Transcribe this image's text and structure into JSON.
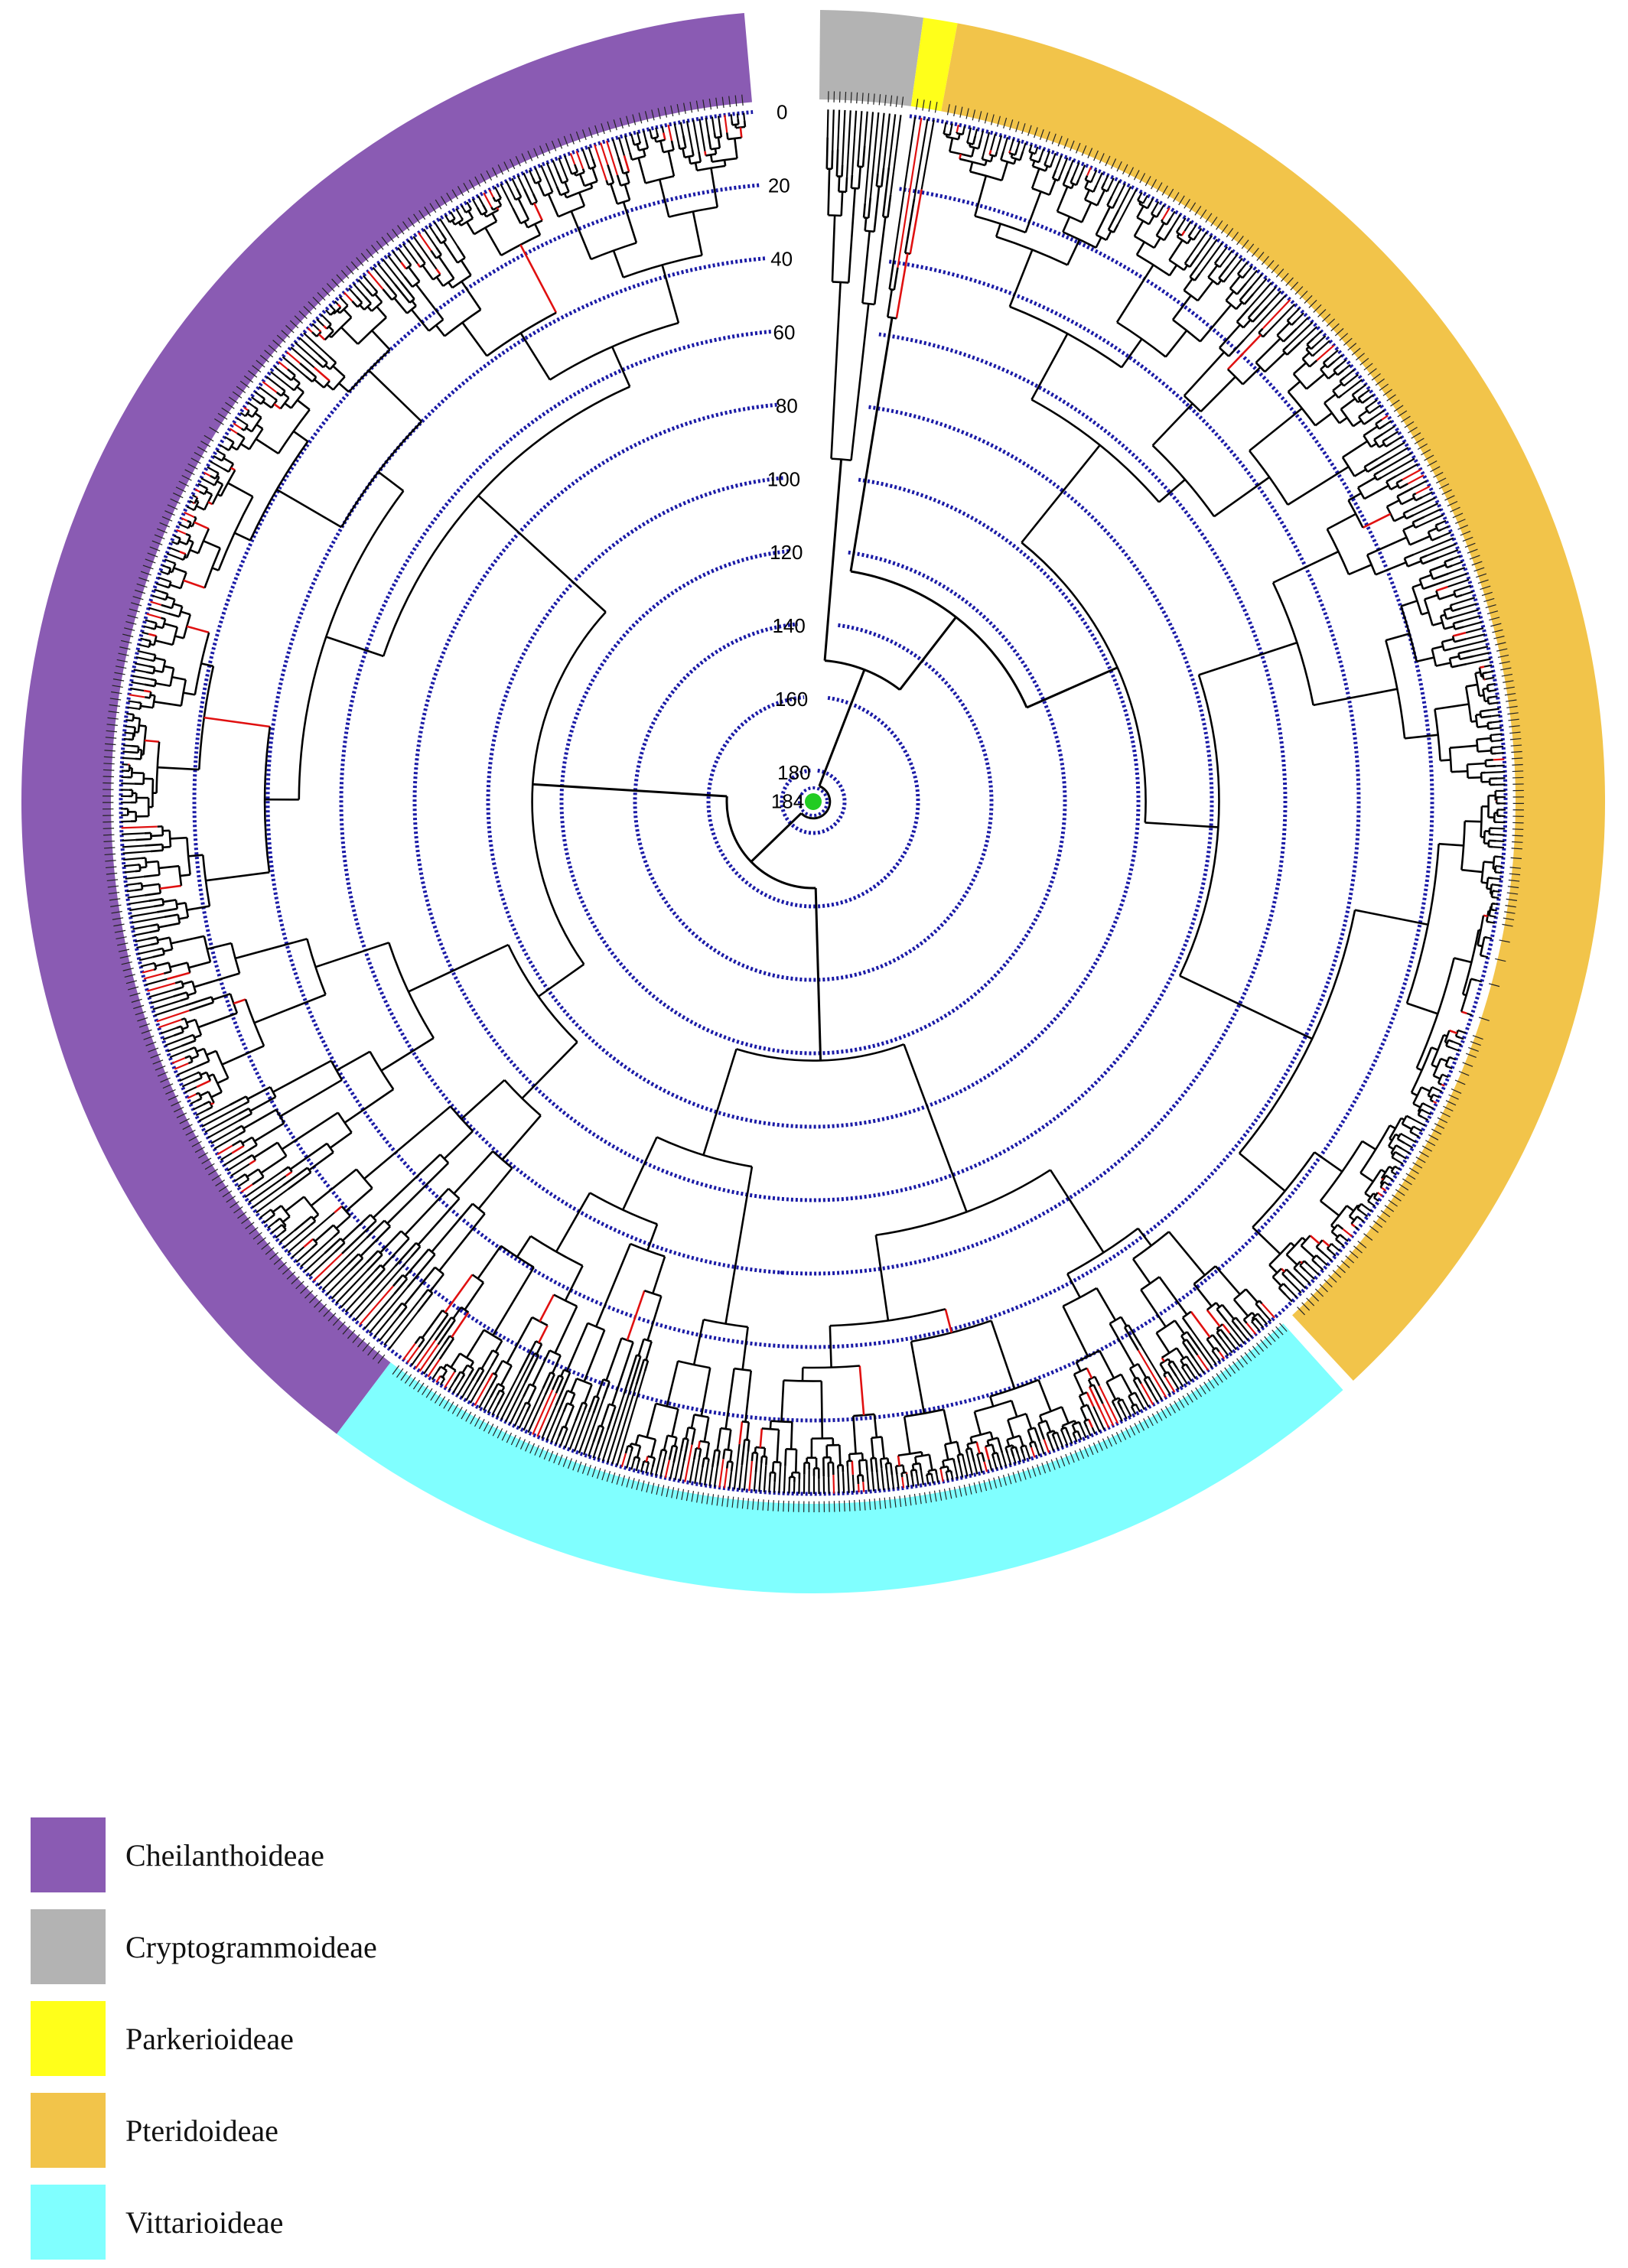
{
  "diagram": {
    "type": "circular-phylogenetic-tree",
    "time_axis": {
      "labels": [
        "0",
        "20",
        "40",
        "60",
        "80",
        "100",
        "120",
        "140",
        "160",
        "180"
      ],
      "root_age_label": "184",
      "ring_color": "#1a1aa6"
    },
    "root_node_color": "#22cc22",
    "branch_colors": {
      "default": "#000000",
      "highlight": "#e01010"
    }
  },
  "clades": [
    {
      "name": "Cheilanthoideae",
      "color": "#8a5bb3"
    },
    {
      "name": "Cryptogrammoideae",
      "color": "#b3b3b3"
    },
    {
      "name": "Parkerioideae",
      "color": "#ffff1a"
    },
    {
      "name": "Pteridoideae",
      "color": "#f2c44a"
    },
    {
      "name": "Vittarioideae",
      "color": "#80ffff"
    }
  ]
}
